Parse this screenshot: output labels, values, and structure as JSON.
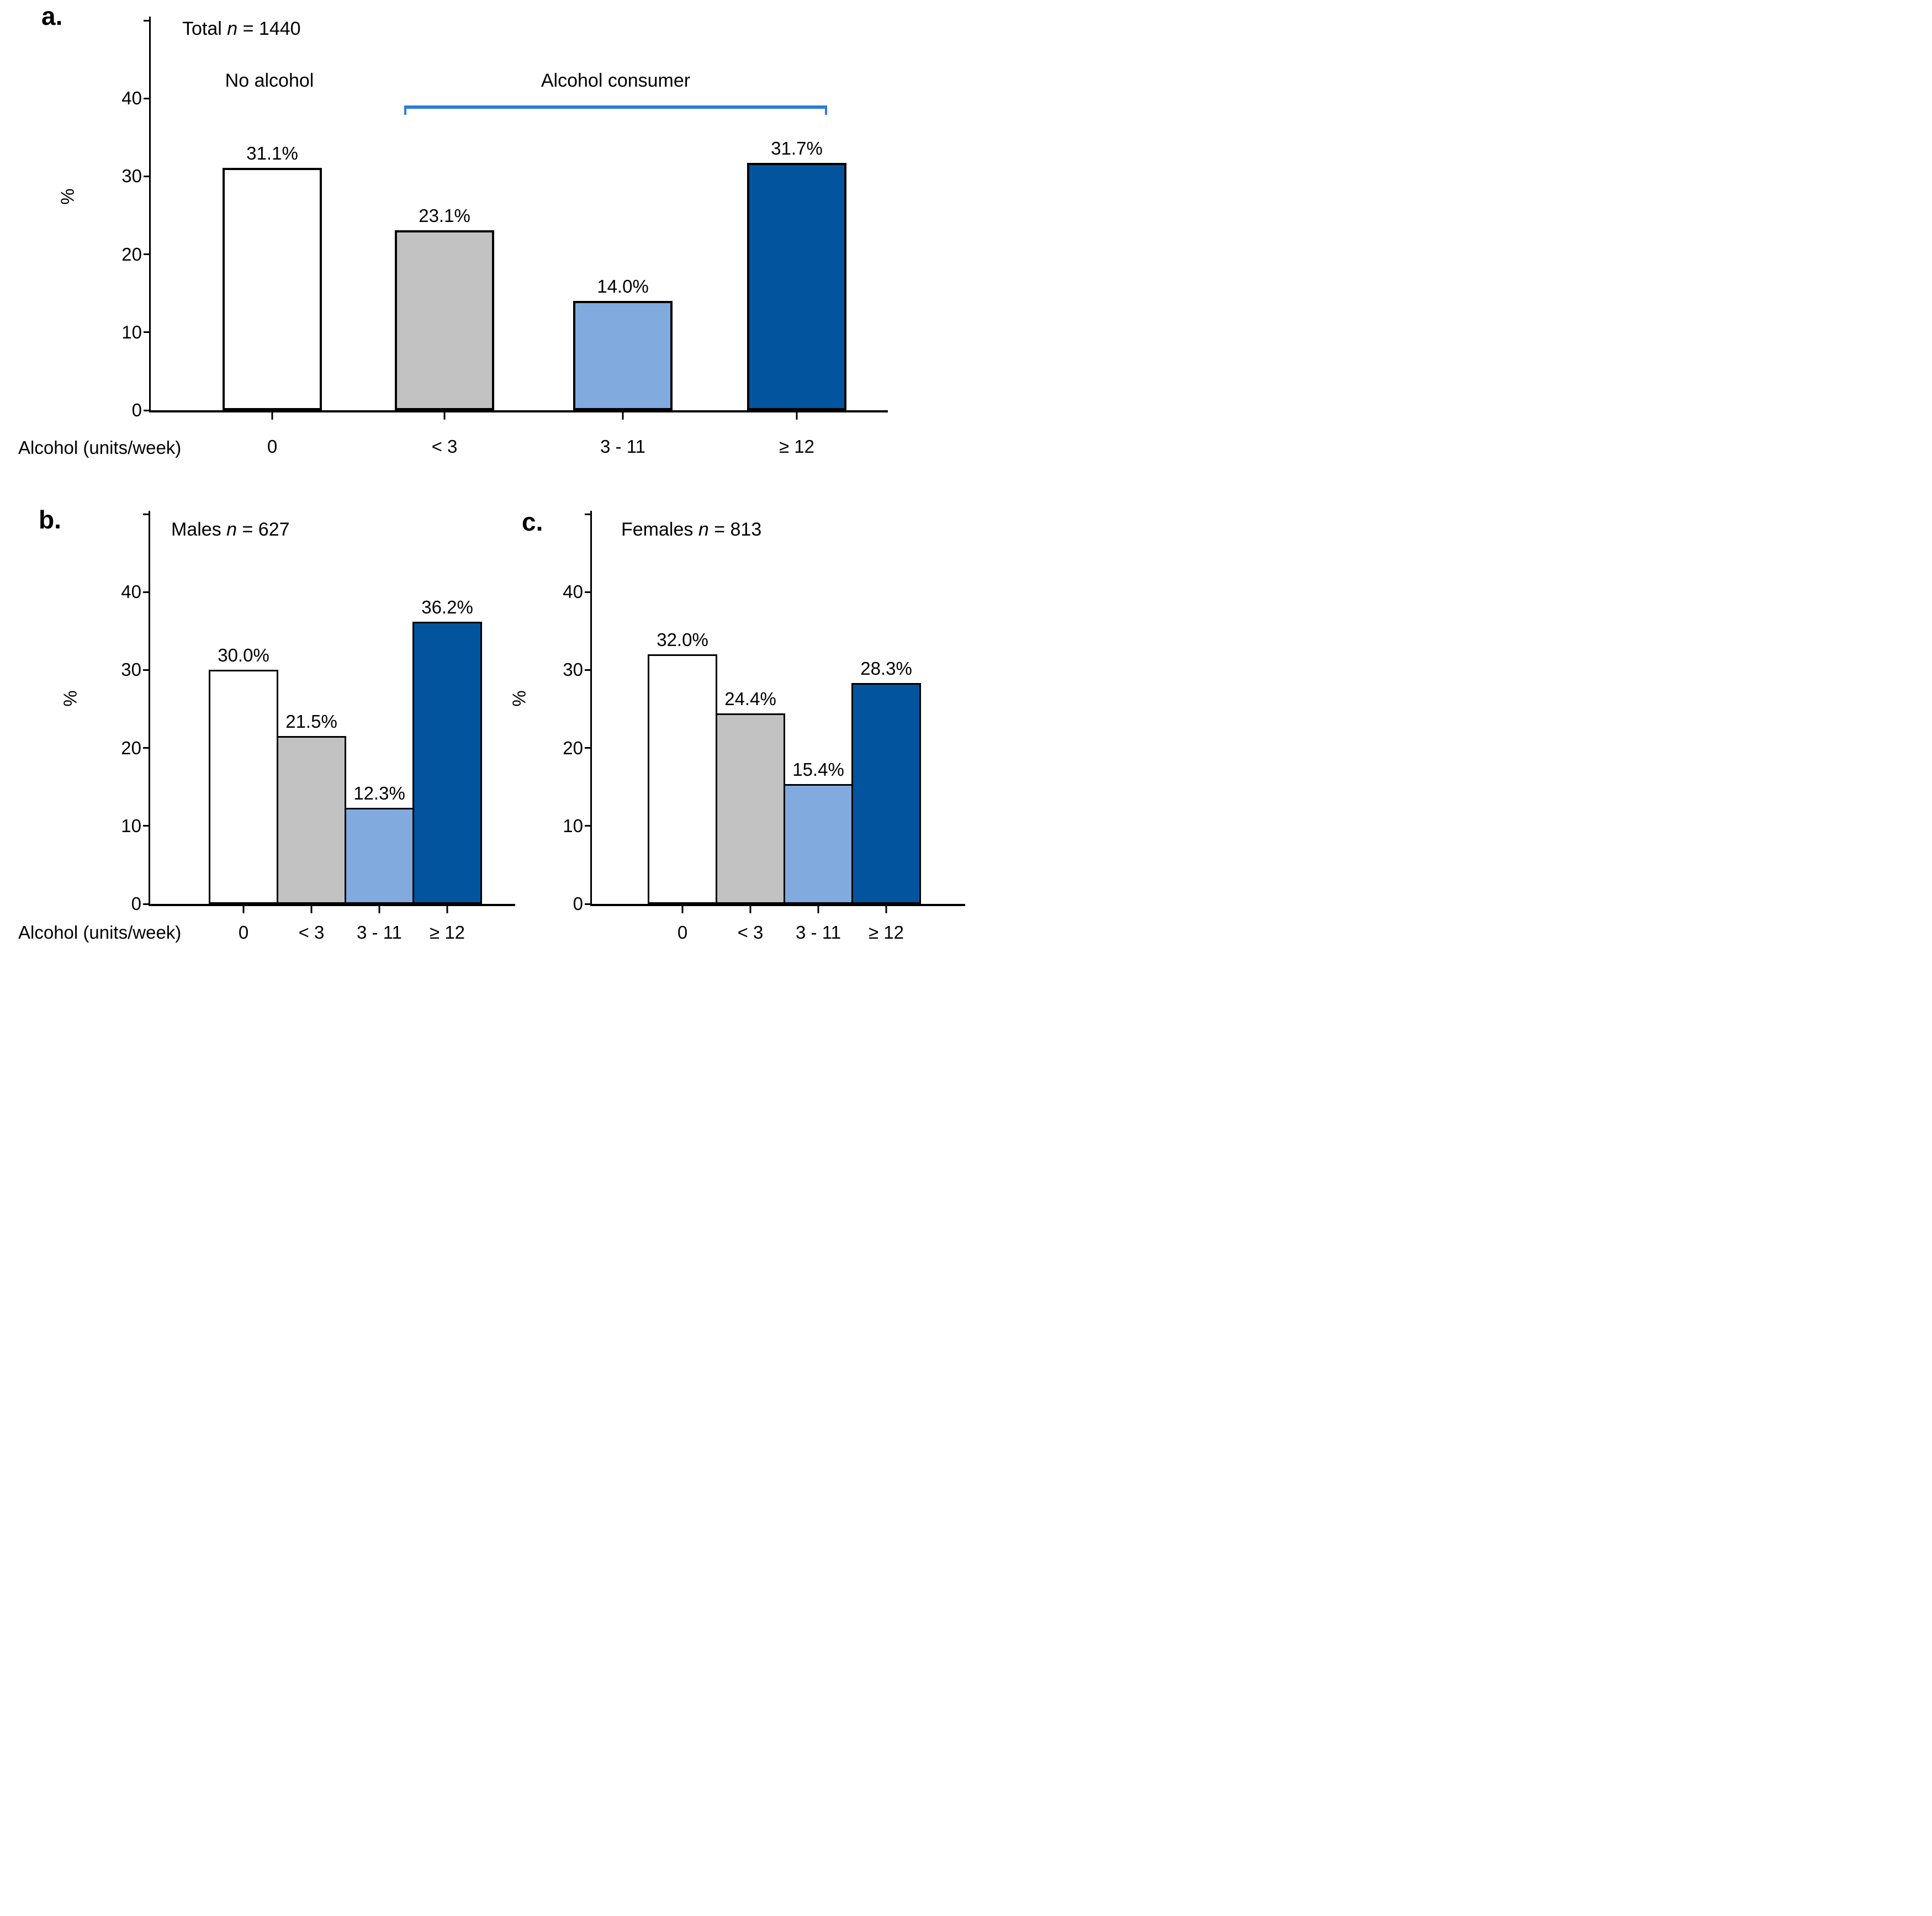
{
  "chart_data": [
    {
      "type": "bar",
      "panel_letter": "a.",
      "title": "Total n = 1440",
      "title_parts": {
        "prefix": "Total ",
        "n_symbol": "n",
        "suffix": " = 1440"
      },
      "xlabel": "Alcohol (units/week)",
      "ylabel": "%",
      "categories": [
        "0",
        "< 3",
        "3 - 11",
        "≥ 12"
      ],
      "values": [
        31.1,
        23.1,
        14.0,
        31.7
      ],
      "value_labels": [
        "31.1%",
        "23.1%",
        "14.0%",
        "31.7%"
      ],
      "ylim": [
        0,
        50
      ],
      "yticks": [
        0,
        10,
        20,
        30,
        40
      ],
      "grid": false,
      "legend": "none",
      "bar_border_color": "#000000",
      "bar_fill_colors": [
        "#FFFFFF",
        "#C2C2C2",
        "#81ABDF",
        "#02549E"
      ],
      "annotations": [
        {
          "text": "No alcohol",
          "over_categories": [
            "0"
          ],
          "bracket": false
        },
        {
          "text": "Alcohol consumer",
          "over_categories": [
            "< 3",
            "3 - 11",
            "≥ 12"
          ],
          "bracket": true,
          "bracket_color": "#2F7CD8"
        }
      ]
    },
    {
      "type": "bar",
      "panel_letter": "b.",
      "title": "Males n = 627",
      "title_parts": {
        "prefix": "Males ",
        "n_symbol": "n",
        "suffix": " = 627"
      },
      "xlabel": "Alcohol (units/week)",
      "ylabel": "%",
      "categories": [
        "0",
        "< 3",
        "3 - 11",
        "≥ 12"
      ],
      "values": [
        30.0,
        21.5,
        12.3,
        36.2
      ],
      "value_labels": [
        "30.0%",
        "21.5%",
        "12.3%",
        "36.2%"
      ],
      "ylim": [
        0,
        50
      ],
      "yticks": [
        0,
        10,
        20,
        30,
        40
      ],
      "grid": false,
      "legend": "none",
      "bar_border_color": "#000000",
      "bar_fill_colors": [
        "#FFFFFF",
        "#C2C2C2",
        "#81ABDF",
        "#02549E"
      ]
    },
    {
      "type": "bar",
      "panel_letter": "c.",
      "title": "Females n = 813",
      "title_parts": {
        "prefix": "Females ",
        "n_symbol": "n",
        "suffix": " = 813"
      },
      "xlabel": "",
      "ylabel": "%",
      "categories": [
        "0",
        "< 3",
        "3 - 11",
        "≥ 12"
      ],
      "values": [
        32.0,
        24.4,
        15.4,
        28.3
      ],
      "value_labels": [
        "32.0%",
        "24.4%",
        "15.4%",
        "28.3%"
      ],
      "ylim": [
        0,
        50
      ],
      "yticks": [
        0,
        10,
        20,
        30,
        40
      ],
      "grid": false,
      "legend": "none",
      "bar_border_color": "#000000",
      "bar_fill_colors": [
        "#FFFFFF",
        "#C2C2C2",
        "#81ABDF",
        "#02549E"
      ]
    }
  ]
}
